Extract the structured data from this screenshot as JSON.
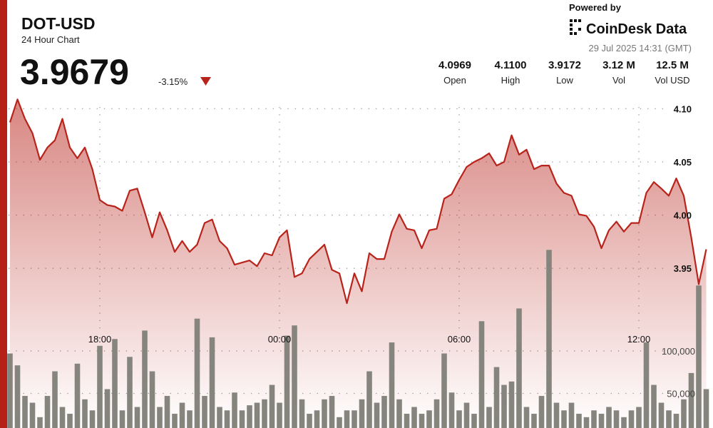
{
  "header": {
    "symbol": "DOT-USD",
    "subtitle": "24 Hour Chart",
    "price": "3.9679",
    "change": "-3.15%",
    "powered_by": "Powered by",
    "brand": "CoinDesk Data",
    "timestamp": "29 Jul 2025 14:31 (GMT)"
  },
  "stats": [
    {
      "value": "4.0969",
      "label": "Open"
    },
    {
      "value": "4.1100",
      "label": "High"
    },
    {
      "value": "3.9172",
      "label": "Low"
    },
    {
      "value": "3.12 M",
      "label": "Vol"
    },
    {
      "value": "12.5 M",
      "label": "Vol USD"
    }
  ],
  "chart_data": {
    "type": "line",
    "categories": [
      null,
      null,
      null,
      null,
      null,
      null,
      null,
      null,
      null,
      null,
      null,
      null,
      "18:00",
      null,
      null,
      null,
      null,
      null,
      null,
      null,
      null,
      null,
      null,
      null,
      null,
      null,
      null,
      null,
      null,
      null,
      null,
      null,
      null,
      null,
      null,
      null,
      "00:00",
      null,
      null,
      null,
      null,
      null,
      null,
      null,
      null,
      null,
      null,
      null,
      null,
      null,
      null,
      null,
      null,
      null,
      null,
      null,
      null,
      null,
      null,
      null,
      "06:00",
      null,
      null,
      null,
      null,
      null,
      null,
      null,
      null,
      null,
      null,
      null,
      null,
      null,
      null,
      null,
      null,
      null,
      null,
      null,
      null,
      null,
      null,
      null,
      "12:00",
      null,
      null,
      null,
      null,
      null,
      null,
      null,
      null,
      null
    ],
    "series": [
      {
        "color": "#b8241b",
        "values": [
          4.0872,
          4.1088,
          4.0905,
          4.077,
          4.052,
          4.0635,
          4.0703,
          4.0905,
          4.0635,
          4.0534,
          4.0635,
          4.0432,
          4.0142,
          4.0095,
          4.0081,
          4.0041,
          4.023,
          4.025,
          4.0027,
          3.9791,
          4.0027,
          3.9858,
          3.9655,
          3.9757,
          3.9655,
          3.9723,
          3.9926,
          3.9959,
          3.9757,
          3.9689,
          3.9534,
          3.9554,
          3.9574,
          3.952,
          3.9642,
          3.9622,
          3.9791,
          3.9858,
          3.9419,
          3.9453,
          3.9588,
          3.9655,
          3.9723,
          3.9486,
          3.9453,
          3.9172,
          3.9453,
          3.9284,
          3.9642,
          3.9588,
          3.9588,
          3.9845,
          4.0007,
          3.9872,
          3.9858,
          3.9689,
          3.9858,
          3.9872,
          4.0155,
          4.0196,
          4.0331,
          4.0453,
          4.05,
          4.0534,
          4.0581,
          4.0466,
          4.05,
          4.075,
          4.0568,
          4.0615,
          4.0432,
          4.0466,
          4.0466,
          4.0297,
          4.0209,
          4.0182,
          4.0007,
          3.9993,
          3.9892,
          3.9689,
          3.9858,
          3.9939,
          3.9845,
          3.9926,
          3.9926,
          4.0209,
          4.0311,
          4.025,
          4.0182,
          4.0345,
          4.0182,
          3.9791,
          3.9351,
          3.9679
        ]
      },
      {
        "type": "bar",
        "axis": "y2",
        "color": "#85857e",
        "values": [
          97000,
          83000,
          47000,
          39000,
          22000,
          47000,
          76000,
          34000,
          26000,
          85000,
          43000,
          30000,
          106000,
          55000,
          114000,
          30000,
          93000,
          34000,
          124000,
          76000,
          34000,
          47000,
          26000,
          39000,
          30000,
          138000,
          47000,
          116000,
          34000,
          30000,
          51000,
          30000,
          36000,
          39000,
          43000,
          60000,
          39000,
          118000,
          130000,
          43000,
          26000,
          30000,
          43000,
          47000,
          22000,
          30000,
          30000,
          43000,
          76000,
          39000,
          47000,
          110000,
          43000,
          26000,
          34000,
          26000,
          30000,
          43000,
          97000,
          51000,
          30000,
          39000,
          26000,
          135000,
          34000,
          81000,
          60000,
          64000,
          150000,
          34000,
          26000,
          47000,
          219000,
          39000,
          30000,
          39000,
          26000,
          22000,
          30000,
          26000,
          34000,
          30000,
          22000,
          30000,
          34000,
          110000,
          60000,
          39000,
          30000,
          26000,
          43000,
          74000,
          177000,
          55000
        ]
      }
    ],
    "ylim": [
      3.8,
      4.115
    ],
    "yticks": [
      {
        "value": 4.1,
        "label": "4.10"
      },
      4.05,
      {
        "value": 4,
        "label": "4.00"
      },
      3.95
    ],
    "y2lim": [
      0,
      404000
    ],
    "y2ticks": [
      {
        "value": 100000,
        "label": "100,000"
      },
      {
        "value": 50000,
        "label": "50,000"
      }
    ],
    "grid": true
  }
}
